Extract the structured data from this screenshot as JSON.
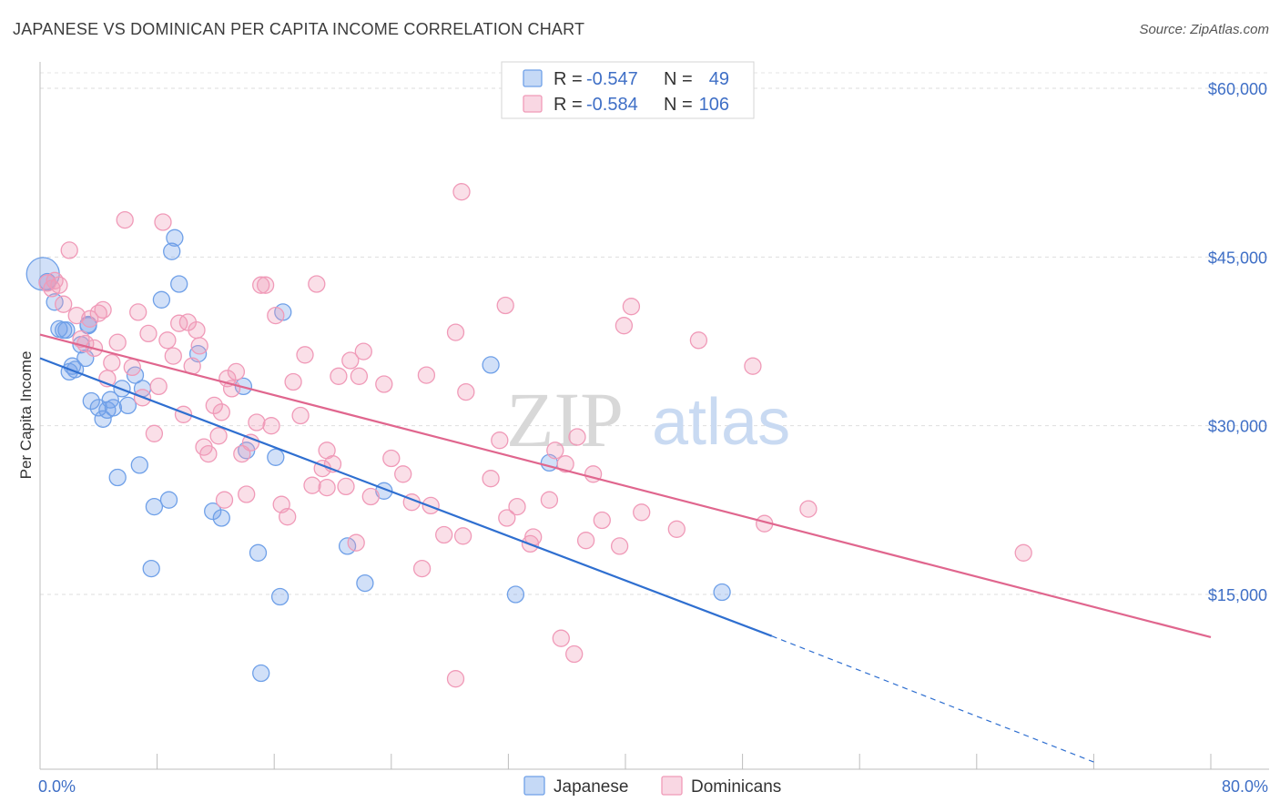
{
  "title": "JAPANESE VS DOMINICAN PER CAPITA INCOME CORRELATION CHART",
  "source": "Source: ZipAtlas.com",
  "watermark": {
    "zip": "ZIP",
    "atlas": "atlas"
  },
  "chart_data": {
    "type": "scatter",
    "ylabel": "Per Capita Income",
    "xlim": [
      0,
      80
    ],
    "ylim": [
      0,
      62000
    ],
    "x_tick_labels": [
      "0.0%",
      "80.0%"
    ],
    "y_ticks": [
      15000,
      30000,
      45000,
      60000
    ],
    "y_tick_labels": [
      "$15,000",
      "$30,000",
      "$45,000",
      "$60,000"
    ],
    "grid": true,
    "legend_position": "bottom-center",
    "stats": [
      {
        "r_label": "R = ",
        "r_value": "-0.547",
        "n_label": "N = ",
        "n_value": "49"
      },
      {
        "r_label": "R = ",
        "r_value": "-0.584",
        "n_label": "N = ",
        "n_value": "106"
      }
    ],
    "series": [
      {
        "name": "Japanese",
        "color": "#6fa0e8",
        "line_color": "#2f6fd0",
        "trend": {
          "x0": 0,
          "y0": 36000,
          "x1": 50,
          "y1": 11300,
          "dash_to_x": 72,
          "dash_to_y": 100
        },
        "points": [
          [
            0.2,
            43500
          ],
          [
            0.5,
            42800
          ],
          [
            1.0,
            41000
          ],
          [
            1.3,
            38600
          ],
          [
            1.6,
            38500
          ],
          [
            2.2,
            35300
          ],
          [
            2.4,
            35000
          ],
          [
            2.8,
            37200
          ],
          [
            3.1,
            36000
          ],
          [
            3.3,
            39000
          ],
          [
            3.5,
            32200
          ],
          [
            4.0,
            31600
          ],
          [
            4.3,
            30600
          ],
          [
            4.6,
            31400
          ],
          [
            5.0,
            31600
          ],
          [
            5.3,
            25400
          ],
          [
            5.6,
            33300
          ],
          [
            6.0,
            31800
          ],
          [
            6.5,
            34500
          ],
          [
            6.8,
            26500
          ],
          [
            7.0,
            33300
          ],
          [
            7.6,
            17300
          ],
          [
            7.8,
            22800
          ],
          [
            8.3,
            41200
          ],
          [
            8.8,
            23400
          ],
          [
            9.0,
            45500
          ],
          [
            9.2,
            46700
          ],
          [
            9.5,
            42600
          ],
          [
            10.8,
            36400
          ],
          [
            11.8,
            22400
          ],
          [
            12.4,
            21800
          ],
          [
            13.9,
            33500
          ],
          [
            14.1,
            27800
          ],
          [
            14.9,
            18700
          ],
          [
            15.1,
            8000
          ],
          [
            16.1,
            27200
          ],
          [
            16.4,
            14800
          ],
          [
            16.6,
            40100
          ],
          [
            21.0,
            19300
          ],
          [
            22.2,
            16000
          ],
          [
            23.5,
            24200
          ],
          [
            30.8,
            35400
          ],
          [
            32.5,
            15000
          ],
          [
            34.8,
            26700
          ],
          [
            46.6,
            15200
          ],
          [
            3.3,
            38900
          ],
          [
            1.8,
            38500
          ],
          [
            2.0,
            34800
          ],
          [
            4.8,
            32300
          ]
        ]
      },
      {
        "name": "Dominicans",
        "color": "#f09ab8",
        "line_color": "#e0668e",
        "trend": {
          "x0": 0,
          "y0": 38100,
          "x1": 80,
          "y1": 11200
        },
        "points": [
          [
            0.5,
            42700
          ],
          [
            0.8,
            42200
          ],
          [
            1.0,
            42900
          ],
          [
            1.3,
            42500
          ],
          [
            1.6,
            40800
          ],
          [
            2.0,
            45600
          ],
          [
            2.5,
            39800
          ],
          [
            2.8,
            37700
          ],
          [
            3.1,
            37300
          ],
          [
            3.4,
            39500
          ],
          [
            3.7,
            36900
          ],
          [
            4.0,
            40000
          ],
          [
            4.3,
            40300
          ],
          [
            4.6,
            34200
          ],
          [
            4.9,
            35600
          ],
          [
            5.3,
            37400
          ],
          [
            5.8,
            48300
          ],
          [
            6.3,
            35200
          ],
          [
            6.7,
            40100
          ],
          [
            7.0,
            32500
          ],
          [
            7.4,
            38200
          ],
          [
            7.8,
            29300
          ],
          [
            8.1,
            33500
          ],
          [
            8.4,
            48100
          ],
          [
            8.7,
            37600
          ],
          [
            9.1,
            36200
          ],
          [
            9.5,
            39100
          ],
          [
            9.8,
            31000
          ],
          [
            10.1,
            39200
          ],
          [
            10.4,
            35300
          ],
          [
            10.7,
            38500
          ],
          [
            10.9,
            37100
          ],
          [
            11.2,
            28100
          ],
          [
            11.5,
            27500
          ],
          [
            11.9,
            31800
          ],
          [
            12.2,
            29100
          ],
          [
            12.4,
            31200
          ],
          [
            12.8,
            34200
          ],
          [
            13.1,
            33300
          ],
          [
            13.4,
            34800
          ],
          [
            13.8,
            27500
          ],
          [
            14.1,
            23900
          ],
          [
            14.4,
            28500
          ],
          [
            14.8,
            30300
          ],
          [
            15.1,
            42500
          ],
          [
            15.4,
            42500
          ],
          [
            15.8,
            30000
          ],
          [
            16.1,
            39800
          ],
          [
            16.5,
            23000
          ],
          [
            16.9,
            21900
          ],
          [
            17.3,
            33900
          ],
          [
            17.8,
            30900
          ],
          [
            18.1,
            36300
          ],
          [
            18.6,
            24700
          ],
          [
            18.9,
            42600
          ],
          [
            19.3,
            26200
          ],
          [
            19.6,
            27800
          ],
          [
            20.0,
            26600
          ],
          [
            20.4,
            34400
          ],
          [
            20.9,
            24600
          ],
          [
            21.2,
            35800
          ],
          [
            21.6,
            19600
          ],
          [
            21.8,
            34400
          ],
          [
            22.6,
            23700
          ],
          [
            23.5,
            33700
          ],
          [
            24.0,
            27100
          ],
          [
            24.8,
            25700
          ],
          [
            25.4,
            23200
          ],
          [
            26.1,
            17300
          ],
          [
            26.7,
            22900
          ],
          [
            27.6,
            20300
          ],
          [
            28.4,
            38300
          ],
          [
            28.9,
            20200
          ],
          [
            29.1,
            33000
          ],
          [
            30.8,
            25300
          ],
          [
            31.4,
            28700
          ],
          [
            31.9,
            21800
          ],
          [
            32.6,
            22800
          ],
          [
            33.5,
            19500
          ],
          [
            34.8,
            23400
          ],
          [
            35.6,
            11100
          ],
          [
            35.9,
            26600
          ],
          [
            36.5,
            9700
          ],
          [
            37.3,
            19800
          ],
          [
            37.8,
            25700
          ],
          [
            38.4,
            21600
          ],
          [
            39.6,
            19300
          ],
          [
            39.9,
            38900
          ],
          [
            40.4,
            40600
          ],
          [
            41.1,
            22300
          ],
          [
            43.5,
            20800
          ],
          [
            45.0,
            37600
          ],
          [
            48.7,
            35300
          ],
          [
            49.5,
            21300
          ],
          [
            52.5,
            22600
          ],
          [
            67.2,
            18700
          ],
          [
            28.4,
            7500
          ],
          [
            28.8,
            50800
          ],
          [
            35.2,
            27800
          ],
          [
            31.8,
            40700
          ],
          [
            22.1,
            36600
          ],
          [
            12.6,
            23400
          ],
          [
            26.4,
            34500
          ],
          [
            33.7,
            20100
          ],
          [
            36.7,
            29000
          ],
          [
            19.6,
            24500
          ]
        ]
      }
    ]
  }
}
